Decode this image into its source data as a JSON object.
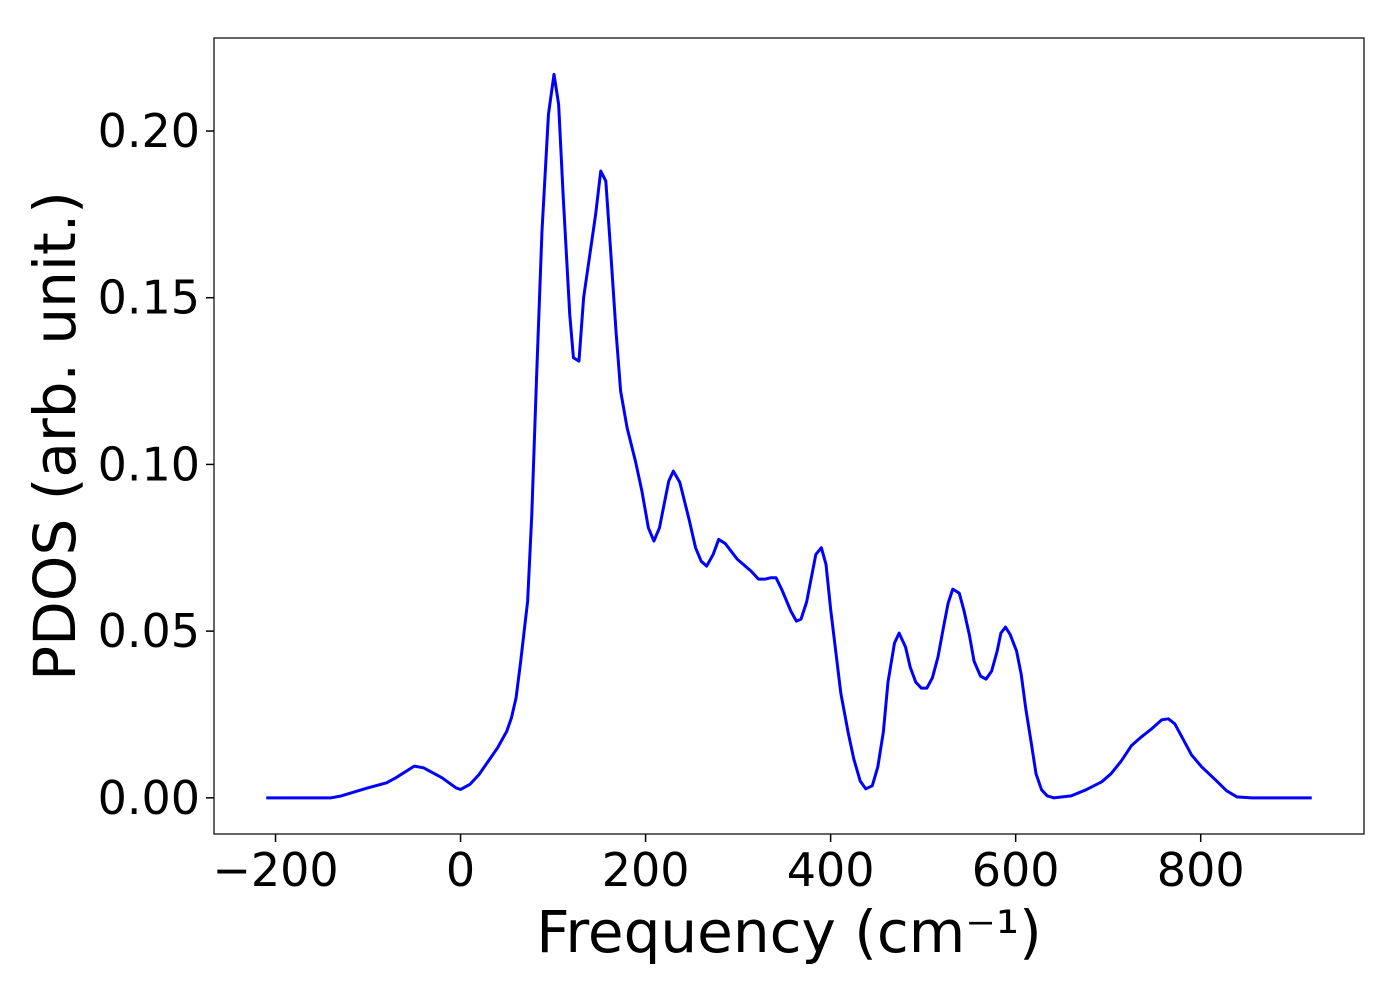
{
  "chart_data": {
    "type": "line",
    "xlabel": "Frequency (cm⁻¹)",
    "ylabel": "PDOS (arb. unit.)",
    "x": [
      -210,
      -140,
      -130,
      -100,
      -80,
      -70,
      -50,
      -40,
      -20,
      -5,
      0,
      10,
      20,
      30,
      40,
      50,
      55,
      60,
      65,
      72.5,
      77,
      82,
      88,
      95,
      101,
      106,
      111,
      118,
      122,
      128,
      133,
      146,
      151.5,
      157,
      162,
      168,
      173,
      180,
      189,
      196,
      203,
      209,
      215,
      225,
      230,
      237,
      247,
      254,
      260,
      266,
      273,
      279,
      286,
      299,
      314,
      322,
      329,
      335,
      341,
      347,
      357,
      363,
      368,
      374,
      384,
      390,
      395,
      400,
      411,
      419,
      425,
      432,
      438,
      445,
      451,
      457,
      462,
      469,
      474,
      481,
      486,
      492,
      498,
      504,
      510,
      516,
      522,
      527,
      532,
      539,
      544,
      550,
      555,
      562,
      568,
      574,
      580,
      584,
      589,
      594,
      601,
      606,
      611,
      617,
      622,
      628,
      634,
      641,
      660,
      676,
      693,
      703,
      714,
      725,
      736,
      747,
      758,
      765,
      772,
      779,
      790,
      801,
      817,
      828,
      839,
      855,
      920
    ],
    "series": [
      {
        "color": "#0000ff",
        "values": [
          0,
          0,
          0.0005,
          0.003,
          0.0045,
          0.006,
          0.0095,
          0.009,
          0.006,
          0.003,
          0.0025,
          0.004,
          0.007,
          0.011,
          0.015,
          0.02,
          0.024,
          0.03,
          0.041,
          0.059,
          0.085,
          0.125,
          0.17,
          0.205,
          0.217,
          0.208,
          0.18,
          0.145,
          0.132,
          0.131,
          0.15,
          0.175,
          0.188,
          0.185,
          0.165,
          0.14,
          0.122,
          0.111,
          0.101,
          0.092,
          0.081,
          0.077,
          0.081,
          0.095,
          0.098,
          0.0946,
          0.0835,
          0.075,
          0.071,
          0.0695,
          0.073,
          0.0775,
          0.0763,
          0.0716,
          0.068,
          0.0656,
          0.0656,
          0.066,
          0.066,
          0.0626,
          0.056,
          0.053,
          0.0536,
          0.0587,
          0.073,
          0.075,
          0.07,
          0.0566,
          0.0314,
          0.0195,
          0.0117,
          0.005,
          0.0027,
          0.0036,
          0.0093,
          0.0198,
          0.0347,
          0.0464,
          0.0494,
          0.0452,
          0.0392,
          0.0347,
          0.0329,
          0.0329,
          0.036,
          0.0422,
          0.0512,
          0.0584,
          0.0626,
          0.0614,
          0.0563,
          0.0488,
          0.041,
          0.0365,
          0.0356,
          0.038,
          0.044,
          0.0494,
          0.0512,
          0.049,
          0.044,
          0.037,
          0.0266,
          0.0162,
          0.0072,
          0.0024,
          0.0006,
          0,
          0.0006,
          0.0024,
          0.0048,
          0.0072,
          0.011,
          0.0156,
          0.0183,
          0.0207,
          0.0234,
          0.0237,
          0.0222,
          0.0186,
          0.0129,
          0.0093,
          0.0051,
          0.0021,
          0.0003,
          0,
          0
        ]
      }
    ],
    "xlim": [
      -266.5,
      976.5
    ],
    "ylim": [
      -0.01085,
      0.2279
    ],
    "xticks": [
      {
        "value": -200,
        "label": "−200"
      },
      0,
      200,
      400,
      600,
      800
    ],
    "yticks": [
      {
        "value": 0,
        "label": "0.00"
      },
      {
        "value": 0.05,
        "label": "0.05"
      },
      {
        "value": 0.1,
        "label": "0.10"
      },
      {
        "value": 0.15,
        "label": "0.15"
      },
      {
        "value": 0.2,
        "label": "0.20"
      }
    ],
    "grid": false
  }
}
